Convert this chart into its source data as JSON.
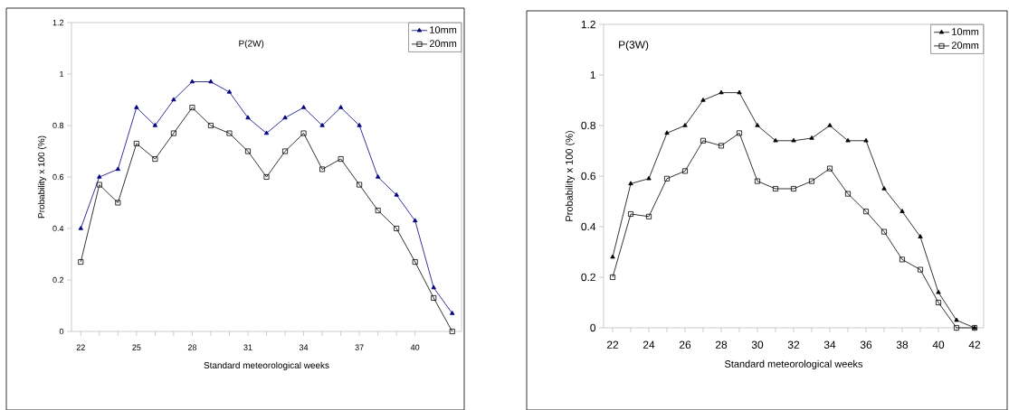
{
  "chart_data": [
    {
      "type": "line",
      "annotations": [
        "P(2W)"
      ],
      "xlabel": "Standard meteorological weeks",
      "ylabel": "Probability x 100 (%)",
      "x": [
        22,
        23,
        24,
        25,
        26,
        27,
        28,
        29,
        30,
        31,
        32,
        33,
        34,
        35,
        36,
        37,
        38,
        39,
        40,
        41,
        42
      ],
      "xlim": [
        21.5,
        42.5
      ],
      "xticks": [
        22,
        25,
        28,
        31,
        34,
        37,
        40
      ],
      "ylim": [
        0,
        1.2
      ],
      "yticks": [
        0,
        0.2,
        0.4,
        0.6,
        0.8,
        1,
        1.2
      ],
      "legend": "top right",
      "line_style": "solid",
      "series": [
        {
          "name": "10mm",
          "color": "#000080",
          "marker": "triangle",
          "values": [
            0.4,
            0.6,
            0.63,
            0.87,
            0.8,
            0.9,
            0.97,
            0.97,
            0.93,
            0.83,
            0.77,
            0.83,
            0.87,
            0.8,
            0.87,
            0.8,
            0.6,
            0.53,
            0.43,
            0.17,
            0.07
          ]
        },
        {
          "name": "20mm",
          "color": "#000000",
          "marker": "square",
          "values": [
            0.27,
            0.57,
            0.5,
            0.73,
            0.67,
            0.77,
            0.87,
            0.8,
            0.77,
            0.7,
            0.6,
            0.7,
            0.77,
            0.63,
            0.67,
            0.57,
            0.47,
            0.4,
            0.27,
            0.13,
            0
          ]
        }
      ]
    },
    {
      "type": "line",
      "annotations": [
        "P(3W)"
      ],
      "xlabel": "Standard meteorological weeks",
      "ylabel": "Probability x 100 (%)",
      "x": [
        22,
        23,
        24,
        25,
        26,
        27,
        28,
        29,
        30,
        31,
        32,
        33,
        34,
        35,
        36,
        37,
        38,
        39,
        40,
        41,
        42
      ],
      "xlim": [
        21.5,
        42.5
      ],
      "xticks": [
        22,
        24,
        26,
        28,
        30,
        32,
        34,
        36,
        38,
        40,
        42
      ],
      "ylim": [
        0,
        1.2
      ],
      "yticks": [
        0,
        0.2,
        0.4,
        0.6,
        0.8,
        1,
        1.2
      ],
      "legend": "top right",
      "line_style": "solid",
      "series": [
        {
          "name": "10mm",
          "color": "#000000",
          "marker": "triangle",
          "values": [
            0.28,
            0.57,
            0.59,
            0.77,
            0.8,
            0.9,
            0.93,
            0.93,
            0.8,
            0.74,
            0.74,
            0.75,
            0.8,
            0.74,
            0.74,
            0.55,
            0.46,
            0.36,
            0.14,
            0.03,
            0
          ]
        },
        {
          "name": "20mm",
          "color": "#000000",
          "marker": "square",
          "values": [
            0.2,
            0.45,
            0.44,
            0.59,
            0.62,
            0.74,
            0.72,
            0.77,
            0.58,
            0.55,
            0.55,
            0.58,
            0.63,
            0.53,
            0.46,
            0.38,
            0.27,
            0.23,
            0.1,
            0,
            0
          ]
        }
      ]
    }
  ]
}
